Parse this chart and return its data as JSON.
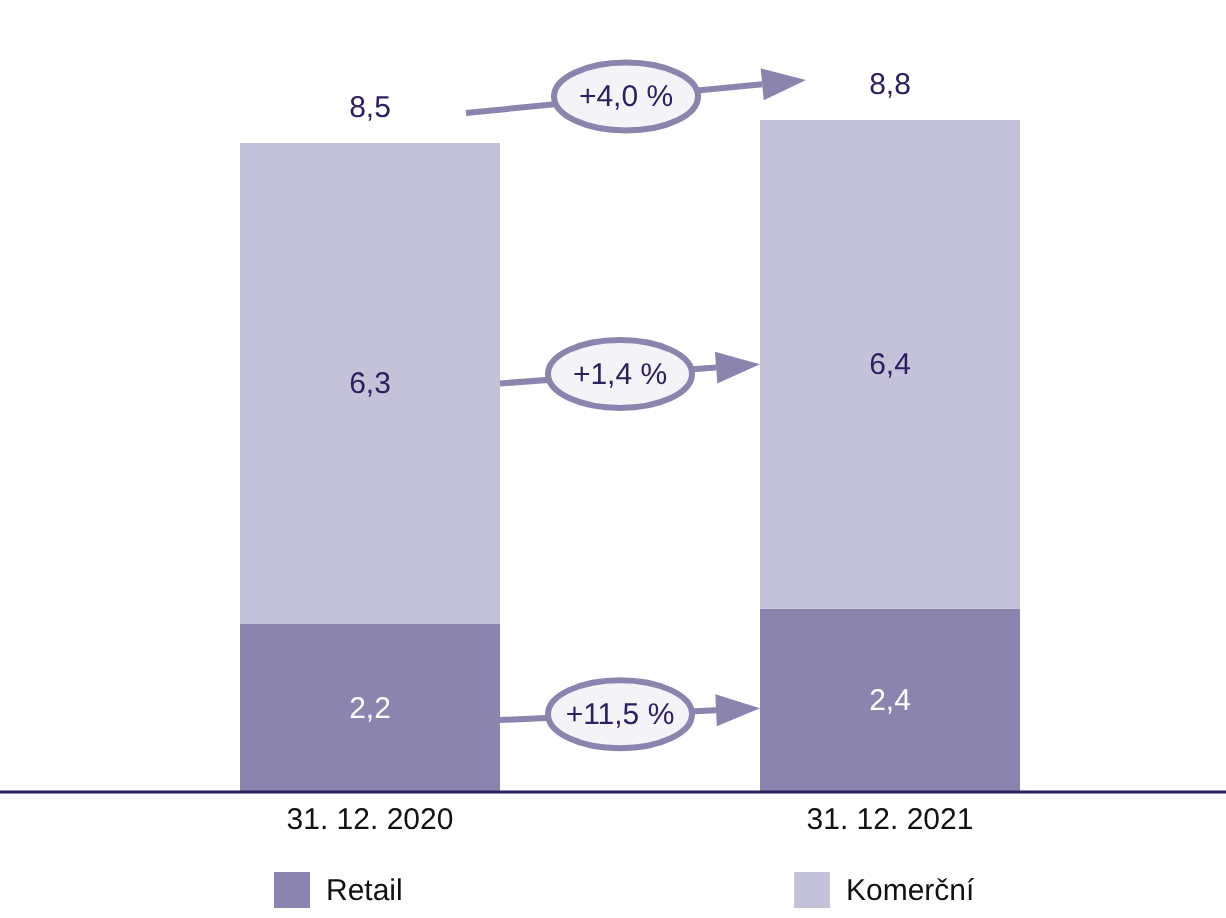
{
  "chart_data": {
    "type": "bar",
    "stacked": true,
    "categories": [
      "31. 12. 2020",
      "31. 12. 2021"
    ],
    "series": [
      {
        "name": "Retail",
        "color": "#8a84ae",
        "values": [
          2.2,
          2.4
        ],
        "value_labels": [
          "2,2",
          "2,4"
        ]
      },
      {
        "name": "Komerční",
        "color": "#c4c2d8",
        "values": [
          6.3,
          6.4
        ],
        "value_labels": [
          "6,3",
          "6,4"
        ]
      }
    ],
    "totals": [
      "8,5",
      "8,8"
    ],
    "annotations": [
      "+4,0 %",
      "+1,4 %",
      "+11,5 %"
    ],
    "legend": "bottom"
  }
}
